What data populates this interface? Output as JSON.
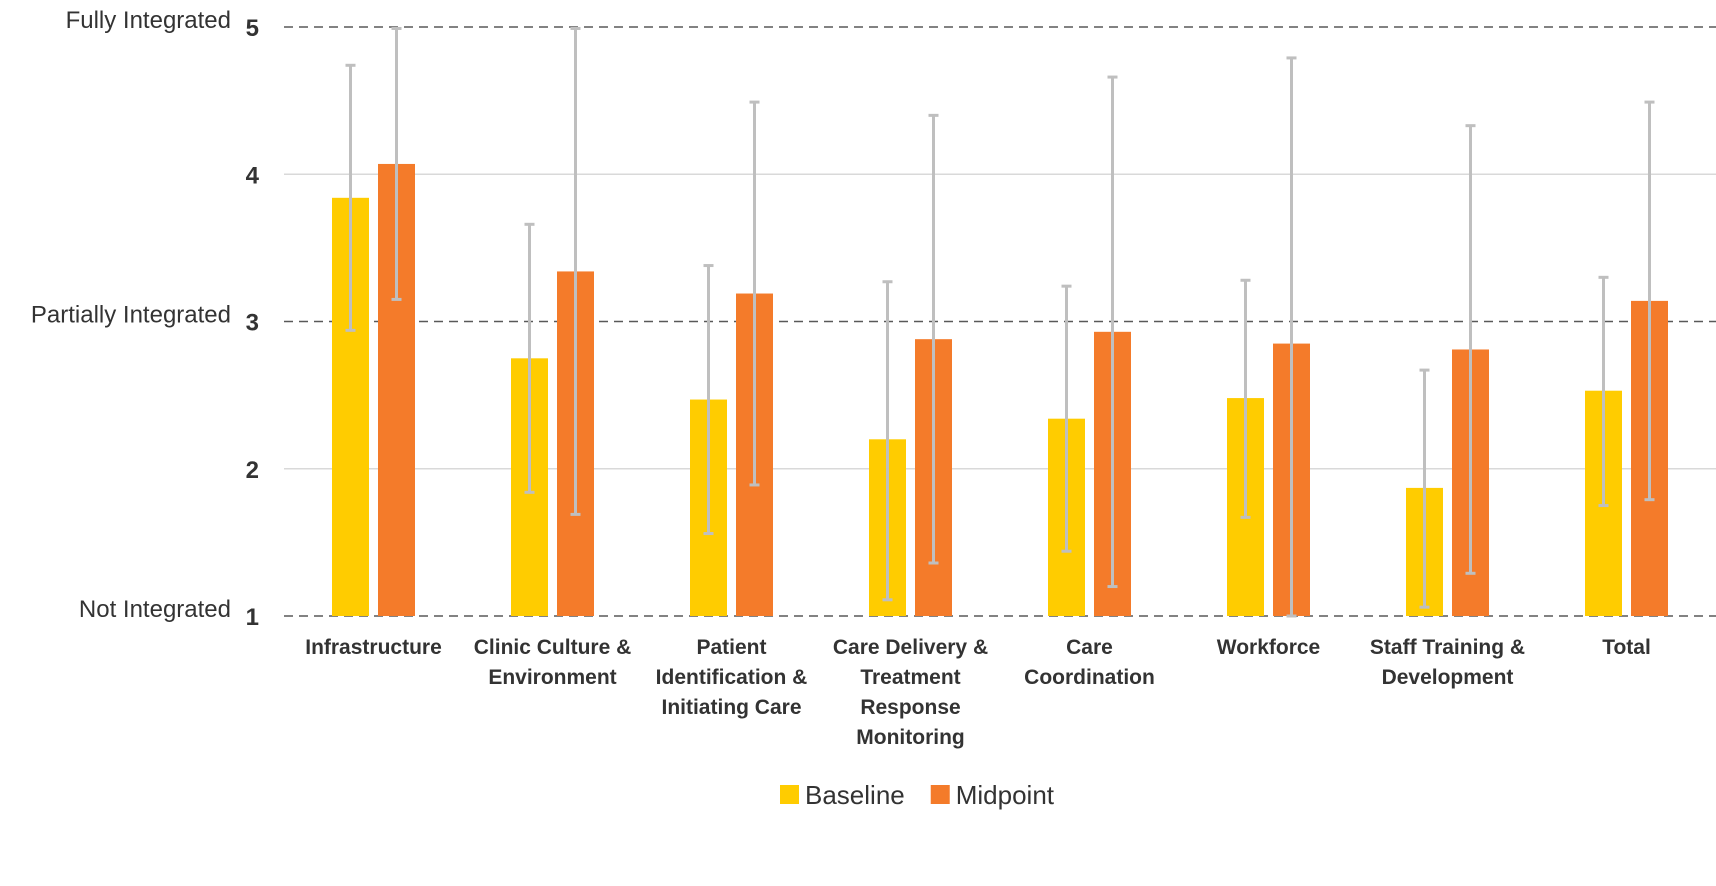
{
  "chart_data": {
    "type": "bar",
    "ylim": [
      1,
      5
    ],
    "y_ticks": [
      "1",
      "2",
      "3",
      "4",
      "5"
    ],
    "y_tick_descriptions": [
      {
        "value": 5,
        "label": "Fully Integrated"
      },
      {
        "value": 3,
        "label": "Partially Integrated"
      },
      {
        "value": 1,
        "label": "Not Integrated"
      }
    ],
    "dashed_gridlines_at": [
      1,
      3,
      5
    ],
    "solid_gridlines_at": [
      2,
      4
    ],
    "categories": [
      "Infrastructure",
      "Clinic Culture & Environment",
      "Patient Identification & Initiating Care",
      "Care Delivery & Treatment Response Monitoring",
      "Care Coordination",
      "Workforce",
      "Staff Training & Development",
      "Total"
    ],
    "category_label_lines": [
      [
        "Infrastructure"
      ],
      [
        "Clinic Culture &",
        "Environment"
      ],
      [
        "Patient",
        "Identification &",
        "Initiating Care"
      ],
      [
        "Care Delivery &",
        "Treatment",
        "Response",
        "Monitoring"
      ],
      [
        "Care",
        "Coordination"
      ],
      [
        "Workforce"
      ],
      [
        "Staff Training &",
        "Development"
      ],
      [
        "Total"
      ]
    ],
    "series": [
      {
        "name": "Baseline",
        "color": "#FFCC00",
        "values": [
          3.84,
          2.75,
          2.47,
          2.2,
          2.34,
          2.48,
          1.87,
          2.53
        ],
        "error_low": [
          2.94,
          1.84,
          1.56,
          1.11,
          1.44,
          1.67,
          1.06,
          1.75
        ],
        "error_high": [
          4.74,
          3.66,
          3.38,
          3.27,
          3.24,
          3.28,
          2.67,
          3.3
        ]
      },
      {
        "name": "Midpoint",
        "color": "#F47B2A",
        "values": [
          4.07,
          3.34,
          3.19,
          2.88,
          2.93,
          2.85,
          2.81,
          3.14
        ],
        "error_low": [
          3.15,
          1.69,
          1.89,
          1.36,
          1.2,
          1.0,
          1.29,
          1.79
        ],
        "error_high": [
          4.99,
          4.99,
          4.49,
          4.4,
          4.66,
          4.79,
          4.33,
          4.49
        ]
      }
    ],
    "error_bar_color": "#BFBFBF",
    "gridline_color": "#D9D9D9",
    "dashed_line_color": "#595959",
    "legend_position": "bottom-center"
  }
}
